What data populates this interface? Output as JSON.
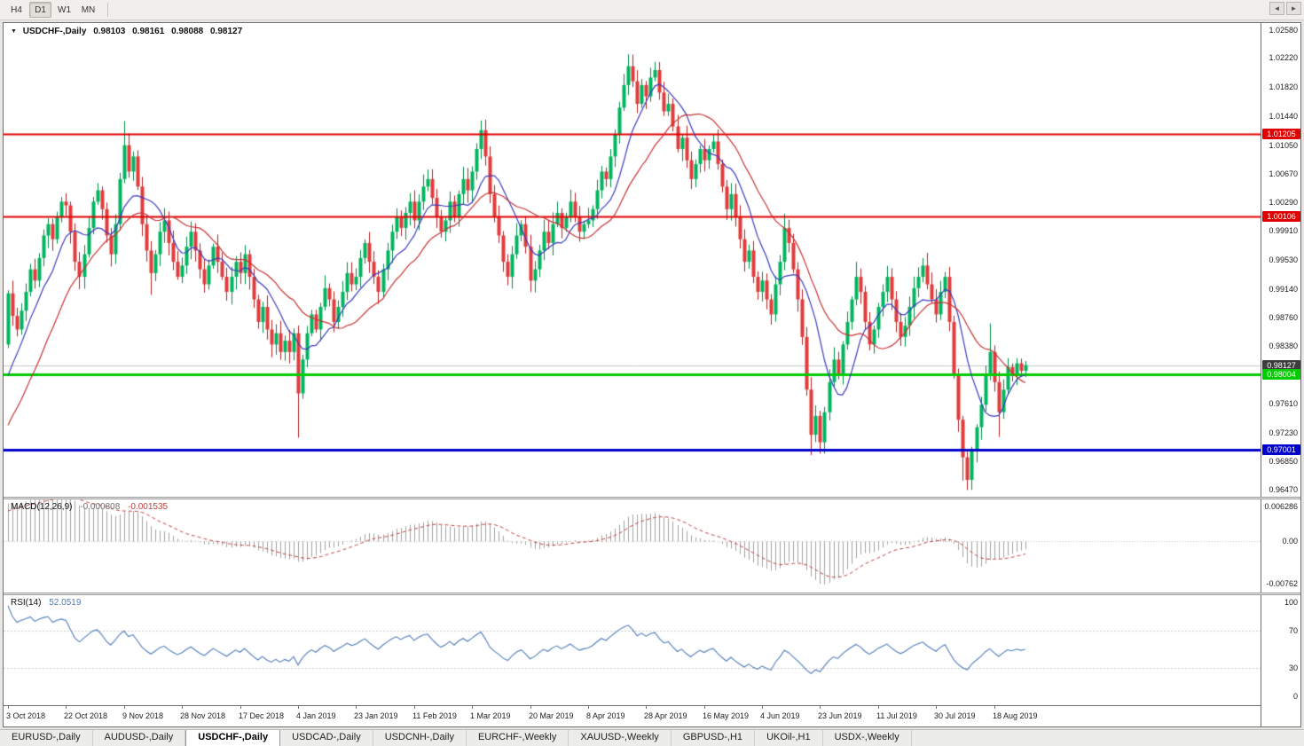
{
  "toolbar": {
    "periods": [
      {
        "label": "H4",
        "active": false
      },
      {
        "label": "D1",
        "active": true
      },
      {
        "label": "W1",
        "active": false
      },
      {
        "label": "MN",
        "active": false
      }
    ]
  },
  "chart_data": {
    "type": "candlestick",
    "title": "USDCHF-,Daily",
    "readout": {
      "icon": "▼",
      "title": "USDCHF-,Daily",
      "open": "0.98103",
      "high": "0.98161",
      "low": "0.98088",
      "close": "0.98127"
    },
    "price_axis": {
      "labels": [
        "1.02580",
        "1.02220",
        "1.01820",
        "1.01440",
        "1.01050",
        "1.00670",
        "1.00290",
        "0.99910",
        "0.99530",
        "0.99140",
        "0.98760",
        "0.98380",
        "0.97990",
        "0.97610",
        "0.97230",
        "0.96850",
        "0.96470"
      ]
    },
    "date_axis": {
      "labels": [
        {
          "text": "3 Oct 2018",
          "bar": 0
        },
        {
          "text": "22 Oct 2018",
          "bar": 13
        },
        {
          "text": "9 Nov 2018",
          "bar": 26
        },
        {
          "text": "28 Nov 2018",
          "bar": 39
        },
        {
          "text": "17 Dec 2018",
          "bar": 52
        },
        {
          "text": "4 Jan 2019",
          "bar": 65
        },
        {
          "text": "23 Jan 2019",
          "bar": 78
        },
        {
          "text": "11 Feb 2019",
          "bar": 91
        },
        {
          "text": "1 Mar 2019",
          "bar": 104
        },
        {
          "text": "20 Mar 2019",
          "bar": 117
        },
        {
          "text": "8 Apr 2019",
          "bar": 130
        },
        {
          "text": "28 Apr 2019",
          "bar": 143
        },
        {
          "text": "16 May 2019",
          "bar": 156
        },
        {
          "text": "4 Jun 2019",
          "bar": 169
        },
        {
          "text": "23 Jun 2019",
          "bar": 182
        },
        {
          "text": "11 Jul 2019",
          "bar": 195
        },
        {
          "text": "30 Jul 2019",
          "bar": 208
        },
        {
          "text": "18 Aug 2019",
          "bar": 221
        }
      ]
    },
    "levels": [
      {
        "price": 1.01205,
        "tag": "1.01205",
        "color": "#e00000",
        "line_width": 2
      },
      {
        "price": 1.00106,
        "tag": "1.00106",
        "color": "#e00000",
        "line_width": 2
      },
      {
        "price": 0.98004,
        "tag": "0.98004",
        "color": "#00cc00",
        "line_width": 3
      },
      {
        "price": 0.97001,
        "tag": "0.97001",
        "color": "#0000cc",
        "line_width": 3
      }
    ],
    "current_price": {
      "price": 0.98127,
      "tag": "0.98127",
      "tag_color": "#3c3c3c"
    },
    "colors": {
      "up": "#00b55f",
      "up_border": "#008a46",
      "down": "#e23b3b",
      "down_border": "#b02020"
    },
    "moving_averages": [
      {
        "period": 9,
        "color": "#3b3bbf",
        "width": 1.2
      },
      {
        "period": 20,
        "color": "#c83232",
        "width": 1.2
      }
    ],
    "seed": 7,
    "open_first": 0.984,
    "closes": [
      0.9908,
      0.9878,
      0.986,
      0.9885,
      0.991,
      0.994,
      0.9925,
      0.9955,
      0.9985,
      1.0,
      0.998,
      1.001,
      1.003,
      1.0025,
      0.999,
      0.995,
      0.993,
      0.996,
      0.9995,
      1.003,
      1.0045,
      1.002,
      0.9985,
      0.996,
      1.0,
      1.006,
      1.0105,
      1.007,
      1.009,
      1.005,
      1.0,
      0.9965,
      0.9935,
      0.996,
      0.999,
      1.0005,
      0.9975,
      0.995,
      0.993,
      0.9945,
      0.997,
      0.999,
      0.9965,
      0.994,
      0.992,
      0.9945,
      0.997,
      0.995,
      0.993,
      0.991,
      0.993,
      0.995,
      0.9935,
      0.996,
      0.993,
      0.99,
      0.987,
      0.989,
      0.986,
      0.984,
      0.9855,
      0.983,
      0.9845,
      0.983,
      0.9855,
      0.9775,
      0.982,
      0.9855,
      0.988,
      0.986,
      0.989,
      0.9915,
      0.99,
      0.987,
      0.989,
      0.991,
      0.9935,
      0.992,
      0.993,
      0.9955,
      0.9975,
      0.995,
      0.993,
      0.991,
      0.994,
      0.9965,
      0.999,
      1.001,
      0.9995,
      1.0015,
      1.003,
      1.0005,
      1.003,
      1.005,
      1.006,
      1.0035,
      1.001,
      0.999,
      1.0005,
      1.003,
      1.001,
      1.004,
      1.006,
      1.0045,
      1.007,
      1.01,
      1.0125,
      1.009,
      1.004,
      1.001,
      0.9985,
      0.995,
      0.993,
      0.996,
      0.9985,
      1.0,
      0.997,
      0.9925,
      0.994,
      0.9965,
      0.999,
      0.9975,
      1.0,
      1.0015,
      0.9995,
      1.001,
      1.003,
      1.001,
      0.999,
      1.0,
      1.0005,
      1.002,
      1.0045,
      1.007,
      1.006,
      1.009,
      1.012,
      1.0155,
      1.0185,
      1.021,
      1.019,
      1.016,
      1.0185,
      1.017,
      1.0195,
      1.0205,
      1.0175,
      1.015,
      1.016,
      1.013,
      1.01,
      1.0115,
      1.0085,
      1.006,
      1.008,
      1.01,
      1.0085,
      1.01,
      1.011,
      1.008,
      1.005,
      1.002,
      1.004,
      1.001,
      0.998,
      0.995,
      0.9965,
      0.993,
      0.991,
      0.9925,
      0.99,
      0.988,
      0.992,
      0.995,
      0.9995,
      0.9975,
      0.994,
      0.99,
      0.985,
      0.978,
      0.972,
      0.9745,
      0.971,
      0.975,
      0.979,
      0.982,
      0.98,
      0.984,
      0.987,
      0.99,
      0.993,
      0.991,
      0.987,
      0.984,
      0.986,
      0.989,
      0.991,
      0.993,
      0.99,
      0.987,
      0.985,
      0.9865,
      0.989,
      0.9915,
      0.993,
      0.9945,
      0.992,
      0.99,
      0.988,
      0.991,
      0.993,
      0.987,
      0.98,
      0.974,
      0.969,
      0.966,
      0.97,
      0.973,
      0.976,
      0.98,
      0.983,
      0.979,
      0.975,
      0.978,
      0.981,
      0.98,
      0.9815,
      0.9805,
      0.98127
    ],
    "spikes": [
      {
        "i": 26,
        "high": 1.0137
      },
      {
        "i": 32,
        "low": 0.9906
      },
      {
        "i": 65,
        "low": 0.9716
      },
      {
        "i": 106,
        "high": 1.0138
      },
      {
        "i": 112,
        "low": 0.9922
      },
      {
        "i": 139,
        "high": 1.0226
      },
      {
        "i": 145,
        "high": 1.0215
      },
      {
        "i": 158,
        "high": 1.012
      },
      {
        "i": 174,
        "high": 1.0014
      },
      {
        "i": 180,
        "low": 0.9693
      },
      {
        "i": 182,
        "low": 0.9695
      },
      {
        "i": 190,
        "high": 0.995
      },
      {
        "i": 205,
        "high": 0.9955
      },
      {
        "i": 214,
        "low": 0.9659
      },
      {
        "i": 215,
        "low": 0.9648
      },
      {
        "i": 220,
        "high": 0.9868
      },
      {
        "i": 222,
        "low": 0.9717
      }
    ],
    "indicator_warmup_closes": [
      0.953,
      0.9542,
      0.9555,
      0.956,
      0.9572,
      0.9585,
      0.958,
      0.9595,
      0.961,
      0.962,
      0.9615,
      0.9632,
      0.9645,
      0.9655,
      0.965,
      0.9668,
      0.968,
      0.9692,
      0.9688,
      0.9705,
      0.9718,
      0.973,
      0.9742,
      0.9738,
      0.9755,
      0.977,
      0.9788,
      0.9805,
      0.983,
      0.9852
    ]
  },
  "indicators": {
    "macd": {
      "name": "MACD(12,26,9)",
      "value_main": "-0.000808",
      "value_signal": "-0.001535",
      "fast": 12,
      "slow": 26,
      "signal": 9,
      "scale_max": 0.006286,
      "scale_min": -0.00762,
      "axis_labels": [
        "0.006286",
        "0.00",
        "-0.00762"
      ],
      "hist_color": "#a0a0a0",
      "signal_color": "#c04040"
    },
    "rsi": {
      "name": "RSI(14)",
      "value": "52.0519",
      "period": 14,
      "levels": [
        70,
        30
      ],
      "axis_labels": [
        "100",
        "70",
        "30",
        "0"
      ],
      "color": "#4f7cba"
    }
  },
  "tabs": {
    "items": [
      {
        "label": "EURUSD-,Daily",
        "active": false
      },
      {
        "label": "AUDUSD-,Daily",
        "active": false
      },
      {
        "label": "USDCHF-,Daily",
        "active": true
      },
      {
        "label": "USDCAD-,Daily",
        "active": false
      },
      {
        "label": "USDCNH-,Daily",
        "active": false
      },
      {
        "label": "EURCHF-,Weekly",
        "active": false
      },
      {
        "label": "XAUUSD-,Weekly",
        "active": false
      },
      {
        "label": "GBPUSD-,H1",
        "active": false
      },
      {
        "label": "UKOil-,H1",
        "active": false
      },
      {
        "label": "USDX-,Weekly",
        "active": false
      }
    ],
    "left_arrow": "◄",
    "right_arrow": "►"
  }
}
